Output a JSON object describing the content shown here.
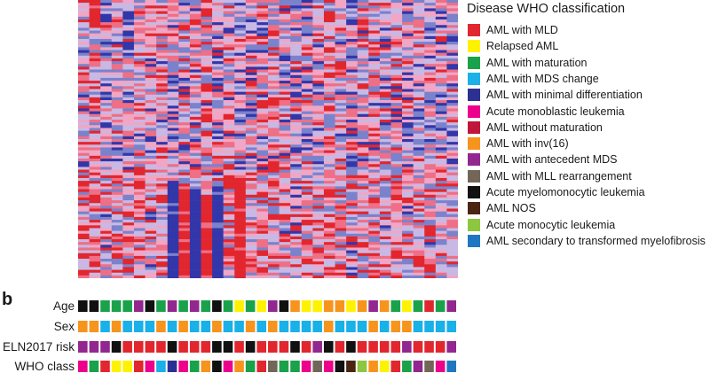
{
  "chart_data": {
    "type": "heatmap",
    "title": "",
    "rows": 100,
    "columns": 34,
    "color_scale": [
      "#3236a8",
      "#7b82cc",
      "#c9b8e4",
      "#f0a6c4",
      "#ee6f86",
      "#e2262e"
    ],
    "column_bias": [
      0.35,
      0.55,
      0.2,
      0.4,
      0.25,
      0.5,
      0.15,
      0.45,
      0.1,
      0.35,
      0.3,
      0.6,
      0.25,
      0.4,
      0.2,
      0.35,
      0.45,
      0.55,
      0.3,
      0.2,
      0.4,
      0.35,
      0.5,
      0.3,
      0.25,
      0.45,
      0.35,
      0.3,
      0.4,
      0.2,
      0.45,
      0.3,
      0.35,
      0.25
    ],
    "blue_column_blocks": [
      {
        "column": 8,
        "rows": [
          66,
          100
        ]
      },
      {
        "column": 10,
        "rows": [
          68,
          100
        ]
      },
      {
        "column": 12,
        "rows": [
          67,
          100
        ]
      }
    ],
    "red_column_blocks": [
      {
        "column": 1,
        "rows": [
          0,
          10
        ]
      },
      {
        "column": 9,
        "rows": [
          66,
          100
        ]
      },
      {
        "column": 11,
        "rows": [
          70,
          100
        ]
      },
      {
        "column": 14,
        "rows": [
          64,
          100
        ]
      }
    ],
    "legend_title": "Disease WHO classification",
    "legend_position": "right",
    "legend": [
      {
        "label": "AML with MLD",
        "color": "#e2262e"
      },
      {
        "label": "Relapsed AML",
        "color": "#fff200"
      },
      {
        "label": "AML with maturation",
        "color": "#1aa24a"
      },
      {
        "label": "AML with MDS change",
        "color": "#1ab0e8"
      },
      {
        "label": "AML with minimal differentiation",
        "color": "#2b3192"
      },
      {
        "label": "Acute monoblastic leukemia",
        "color": "#ec008c"
      },
      {
        "label": "AML without maturation",
        "color": "#c0163c"
      },
      {
        "label": "AML with inv(16)",
        "color": "#f7941d"
      },
      {
        "label": "AML with antecedent MDS",
        "color": "#92278f"
      },
      {
        "label": "AML with MLL rearrangement",
        "color": "#726658"
      },
      {
        "label": "Acute myelomonocytic leukemia",
        "color": "#111111"
      },
      {
        "label": "AML NOS",
        "color": "#4a2511"
      },
      {
        "label": "Acute monocytic leukemia",
        "color": "#8dc63f"
      },
      {
        "label": "AML secondary to transformed myelofibrosis",
        "color": "#1f77c2"
      }
    ]
  },
  "panel_b": {
    "label": "b",
    "tracks": [
      {
        "label": "Age",
        "colors": [
          "#111111",
          "#111111",
          "#1aa24a",
          "#1aa24a",
          "#1aa24a",
          "#92278f",
          "#111111",
          "#1aa24a",
          "#92278f",
          "#1aa24a",
          "#92278f",
          "#1aa24a",
          "#111111",
          "#1aa24a",
          "#fff200",
          "#1aa24a",
          "#fff200",
          "#92278f",
          "#111111",
          "#f7941d",
          "#fff200",
          "#fff200",
          "#f7941d",
          "#f7941d",
          "#fff200",
          "#f7941d",
          "#92278f",
          "#f7941d",
          "#1aa24a",
          "#fff200",
          "#1aa24a",
          "#e2262e",
          "#1aa24a",
          "#92278f"
        ]
      },
      {
        "label": "Sex",
        "colors": [
          "#f7941d",
          "#f7941d",
          "#1ab0e8",
          "#f7941d",
          "#1ab0e8",
          "#1ab0e8",
          "#1ab0e8",
          "#f7941d",
          "#1ab0e8",
          "#f7941d",
          "#1ab0e8",
          "#1ab0e8",
          "#f7941d",
          "#1ab0e8",
          "#1ab0e8",
          "#f7941d",
          "#1ab0e8",
          "#f7941d",
          "#1ab0e8",
          "#1ab0e8",
          "#1ab0e8",
          "#1ab0e8",
          "#f7941d",
          "#1ab0e8",
          "#1ab0e8",
          "#1ab0e8",
          "#f7941d",
          "#1ab0e8",
          "#f7941d",
          "#f7941d",
          "#1ab0e8",
          "#1ab0e8",
          "#1ab0e8",
          "#1ab0e8"
        ]
      },
      {
        "label": "ELN2017 risk",
        "colors": [
          "#92278f",
          "#92278f",
          "#92278f",
          "#111111",
          "#e2262e",
          "#e2262e",
          "#e2262e",
          "#e2262e",
          "#111111",
          "#e2262e",
          "#e2262e",
          "#e2262e",
          "#111111",
          "#111111",
          "#e2262e",
          "#111111",
          "#e2262e",
          "#e2262e",
          "#e2262e",
          "#111111",
          "#e2262e",
          "#92278f",
          "#111111",
          "#e2262e",
          "#111111",
          "#e2262e",
          "#e2262e",
          "#e2262e",
          "#e2262e",
          "#92278f",
          "#e2262e",
          "#e2262e",
          "#e2262e",
          "#92278f"
        ]
      },
      {
        "label": "WHO class",
        "colors": [
          "#ec008c",
          "#1aa24a",
          "#e2262e",
          "#fff200",
          "#fff200",
          "#e2262e",
          "#ec008c",
          "#1ab0e8",
          "#2b3192",
          "#ec008c",
          "#1aa24a",
          "#f7941d",
          "#111111",
          "#ec008c",
          "#f7941d",
          "#1aa24a",
          "#e2262e",
          "#726658",
          "#1aa24a",
          "#1aa24a",
          "#ec008c",
          "#726658",
          "#ec008c",
          "#111111",
          "#4a2511",
          "#8dc63f",
          "#f7941d",
          "#fff200",
          "#e2262e",
          "#1aa24a",
          "#92278f",
          "#726658",
          "#ec008c",
          "#1f77c2"
        ]
      }
    ]
  }
}
